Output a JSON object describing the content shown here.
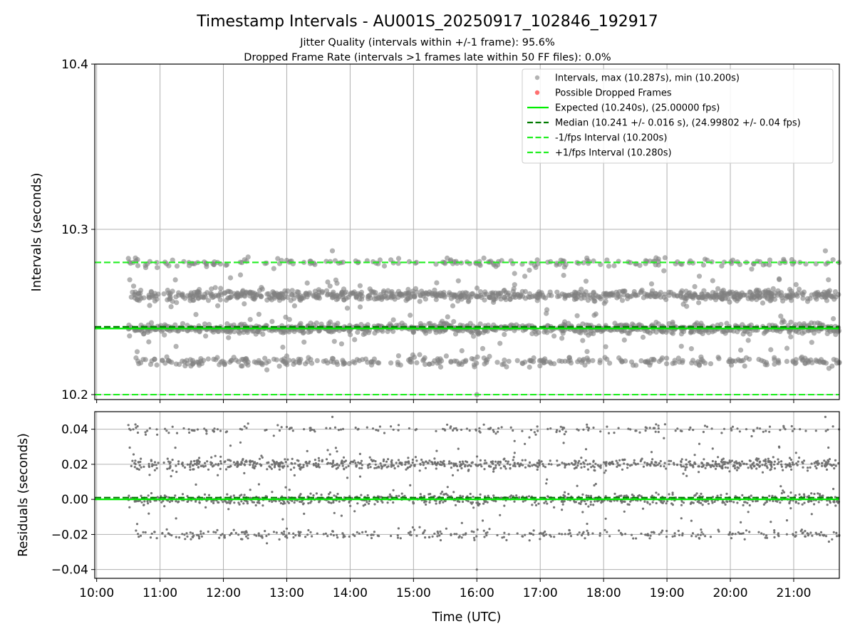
{
  "colors": {
    "interval_point": "#808080",
    "dropped_point": "#ff4c4c",
    "expected_line": "#00ee00",
    "median_line": "#007a00",
    "fps_interval_line": "#22ee22",
    "grid": "#b0b0b0",
    "residual_point": "#6e6e6e"
  },
  "chart_data": [
    {
      "type": "scatter",
      "title": "Timestamp Intervals - AU001S_20250917_102846_192917",
      "subtitle_lines": [
        "Jitter Quality (intervals within +/-1 frame): 95.6%",
        "Dropped Frame Rate (intervals >1 frames late within 50 FF files): 0.0%"
      ],
      "xlabel": "",
      "ylabel": "Intervals (seconds)",
      "xlim": [
        9.97,
        21.72
      ],
      "ylim": [
        10.197,
        10.4
      ],
      "y_ticks": [
        10.2,
        10.3,
        10.4
      ],
      "y_tick_labels": [
        "10.2",
        "10.3",
        "10.4"
      ],
      "x_ticks": [
        10,
        11,
        12,
        13,
        14,
        15,
        16,
        17,
        18,
        19,
        20,
        21
      ],
      "grid": true,
      "legend_position": "top-right",
      "time_range_hours": [
        10.5,
        21.72
      ],
      "point_bands": [
        {
          "name": "level-10.22",
          "center": 10.22,
          "spread": 0.0014,
          "weight": 0.17
        },
        {
          "name": "level-10.24",
          "center": 10.24,
          "spread": 0.0016,
          "weight": 0.36
        },
        {
          "name": "level-10.26",
          "center": 10.26,
          "spread": 0.0016,
          "weight": 0.38
        },
        {
          "name": "level-10.28",
          "center": 10.28,
          "spread": 0.0013,
          "weight": 0.09
        }
      ],
      "outlier_points": [
        {
          "x": 16.0,
          "y": 10.2
        },
        {
          "x": 13.72,
          "y": 10.287
        },
        {
          "x": 21.5,
          "y": 10.287
        }
      ],
      "series": [
        {
          "name": "Intervals, max (10.287s), min (10.200s)",
          "kind": "points",
          "color_key": "interval_point"
        },
        {
          "name": "Possible Dropped Frames",
          "kind": "points",
          "color_key": "dropped_point",
          "values": []
        },
        {
          "name": "Expected (10.240s), (25.00000 fps)",
          "kind": "hline",
          "value": 10.24,
          "style": "solid",
          "color_key": "expected_line"
        },
        {
          "name": "Median (10.241 +/- 0.016 s), (24.99802 +/- 0.04 fps)",
          "kind": "hline",
          "value": 10.241,
          "style": "dashed",
          "color_key": "median_line"
        },
        {
          "name": "-1/fps Interval (10.200s)",
          "kind": "hline",
          "value": 10.2,
          "style": "dashed",
          "color_key": "fps_interval_line"
        },
        {
          "name": "+1/fps Interval (10.280s)",
          "kind": "hline",
          "value": 10.28,
          "style": "dashed",
          "color_key": "fps_interval_line"
        }
      ]
    },
    {
      "type": "scatter",
      "title": "",
      "xlabel": "Time (UTC)",
      "ylabel": "Residuals (seconds)",
      "xlim": [
        9.97,
        21.72
      ],
      "ylim": [
        -0.045,
        0.05
      ],
      "y_ticks": [
        -0.04,
        -0.02,
        0.0,
        0.02,
        0.04
      ],
      "y_tick_labels": [
        "−0.04",
        "−0.02",
        "0.00",
        "0.02",
        "0.04"
      ],
      "x_ticks": [
        10,
        11,
        12,
        13,
        14,
        15,
        16,
        17,
        18,
        19,
        20,
        21
      ],
      "x_tick_labels": [
        "10:00",
        "11:00",
        "12:00",
        "13:00",
        "14:00",
        "15:00",
        "16:00",
        "17:00",
        "18:00",
        "19:00",
        "20:00",
        "21:00"
      ],
      "grid": true,
      "time_range_hours": [
        10.5,
        21.72
      ],
      "point_bands": [
        {
          "name": "residual-minus-0.02",
          "center": -0.02,
          "spread": 0.0014,
          "weight": 0.17
        },
        {
          "name": "residual-0.00",
          "center": 0.0,
          "spread": 0.0016,
          "weight": 0.36
        },
        {
          "name": "residual-0.02",
          "center": 0.02,
          "spread": 0.0016,
          "weight": 0.38
        },
        {
          "name": "residual-0.04",
          "center": 0.04,
          "spread": 0.0013,
          "weight": 0.09
        }
      ],
      "outlier_points": [
        {
          "x": 16.0,
          "y": -0.04
        },
        {
          "x": 13.72,
          "y": 0.047
        },
        {
          "x": 21.5,
          "y": 0.047
        }
      ],
      "series": [
        {
          "name": "Residuals",
          "kind": "points",
          "color_key": "residual_point"
        },
        {
          "name": "Median residual",
          "kind": "hline",
          "value": 0.001,
          "style": "dashed",
          "color_key": "median_line"
        },
        {
          "name": "Zero residual",
          "kind": "hline",
          "value": 0.0,
          "style": "solid",
          "color_key": "expected_line"
        }
      ]
    }
  ]
}
